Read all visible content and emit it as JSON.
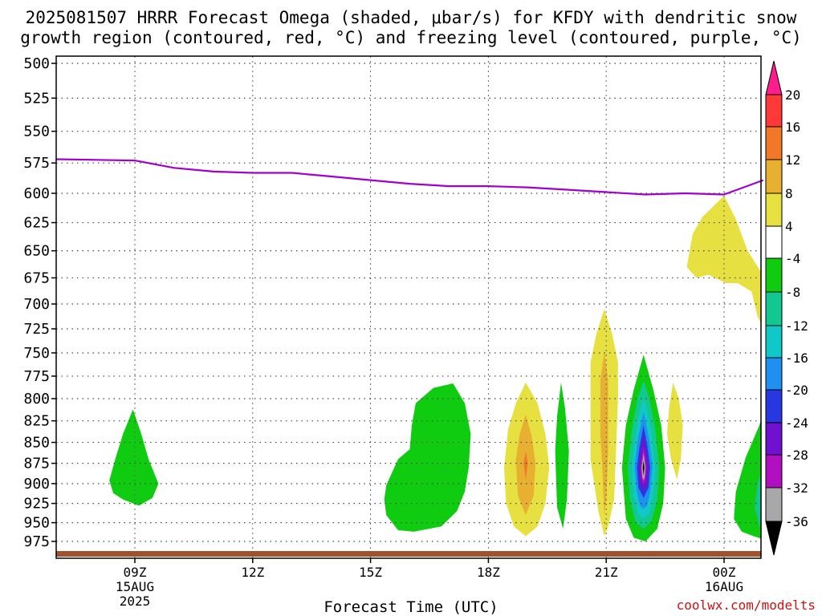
{
  "header": {
    "title_line1": "2025081507 HRRR Forecast Omega (shaded, μbar/s) for KFDY with dendritic snow",
    "title_line2": "growth region (contoured, red, °C) and freezing level (contoured, purple, °C)"
  },
  "footer": {
    "x_axis_title": "Forecast Time (UTC)",
    "credit": "coolwx.com/modelts"
  },
  "colors": {
    "freezing_level": "#a000d0",
    "ground": "#a0522d",
    "grid": "#444444"
  },
  "chart_data": {
    "type": "heatmap",
    "x_unit": "hours after 2025-08-15 07Z",
    "xlim": [
      7,
      25
    ],
    "ylim_hPa": [
      975,
      500
    ],
    "y_ticks": [
      "500",
      "525",
      "550",
      "575",
      "600",
      "625",
      "650",
      "675",
      "700",
      "725",
      "750",
      "775",
      "800",
      "825",
      "850",
      "875",
      "900",
      "925",
      "950",
      "975"
    ],
    "x_ticks": [
      {
        "x": 9,
        "label": "09Z",
        "sub1": "15AUG",
        "sub2": "2025"
      },
      {
        "x": 12,
        "label": "12Z",
        "sub1": "",
        "sub2": ""
      },
      {
        "x": 15,
        "label": "15Z",
        "sub1": "",
        "sub2": ""
      },
      {
        "x": 18,
        "label": "18Z",
        "sub1": "",
        "sub2": ""
      },
      {
        "x": 21,
        "label": "21Z",
        "sub1": "",
        "sub2": ""
      },
      {
        "x": 24,
        "label": "00Z",
        "sub1": "16AUG",
        "sub2": ""
      }
    ],
    "grid": true,
    "colorbar": {
      "unit": "μbar/s",
      "labels": [
        "20",
        "16",
        "12",
        "8",
        "4",
        "-4",
        "-8",
        "-12",
        "-16",
        "-20",
        "-24",
        "-28",
        "-32",
        "-36"
      ],
      "bins": [
        {
          "range": "> 20",
          "color": "#ff1c8c"
        },
        {
          "range": "16 to 20",
          "color": "#ff3838"
        },
        {
          "range": "12 to 16",
          "color": "#f07828"
        },
        {
          "range": "8 to 12",
          "color": "#e8b030"
        },
        {
          "range": "4 to 8",
          "color": "#e6e040"
        },
        {
          "range": "-4 to 4",
          "color": "#ffffff"
        },
        {
          "range": "-8 to -4",
          "color": "#10cc10"
        },
        {
          "range": "-12 to -8",
          "color": "#10c890"
        },
        {
          "range": "-16 to -12",
          "color": "#10c8c8"
        },
        {
          "range": "-20 to -16",
          "color": "#2090f0"
        },
        {
          "range": "-24 to -20",
          "color": "#2838e0"
        },
        {
          "range": "-28 to -24",
          "color": "#7010d0"
        },
        {
          "range": "-32 to -28",
          "color": "#b010c0"
        },
        {
          "range": "-36 to -32",
          "color": "#a8a8a8"
        },
        {
          "range": "< -36",
          "color": "#000000"
        }
      ]
    },
    "freezing_level_hPa": [
      {
        "x": 7.0,
        "p": 572
      },
      {
        "x": 9.0,
        "p": 573
      },
      {
        "x": 10.0,
        "p": 579
      },
      {
        "x": 11.0,
        "p": 582
      },
      {
        "x": 12.0,
        "p": 583
      },
      {
        "x": 13.0,
        "p": 583
      },
      {
        "x": 14.0,
        "p": 586
      },
      {
        "x": 15.0,
        "p": 589
      },
      {
        "x": 16.0,
        "p": 592
      },
      {
        "x": 17.0,
        "p": 594
      },
      {
        "x": 18.0,
        "p": 594
      },
      {
        "x": 19.0,
        "p": 595
      },
      {
        "x": 20.0,
        "p": 597
      },
      {
        "x": 21.0,
        "p": 599
      },
      {
        "x": 22.0,
        "p": 601
      },
      {
        "x": 23.0,
        "p": 600
      },
      {
        "x": 24.0,
        "p": 601
      },
      {
        "x": 25.0,
        "p": 589
      }
    ],
    "omega_regions": [
      {
        "bin": "-8 to -4",
        "points": [
          [
            8.35,
            896
          ],
          [
            8.5,
            870
          ],
          [
            8.7,
            840
          ],
          [
            8.95,
            812
          ],
          [
            9.15,
            838
          ],
          [
            9.35,
            870
          ],
          [
            9.6,
            900
          ],
          [
            9.45,
            918
          ],
          [
            9.1,
            928
          ],
          [
            8.7,
            920
          ],
          [
            8.45,
            912
          ]
        ]
      },
      {
        "bin": "-8 to -4",
        "points": [
          [
            15.4,
            902
          ],
          [
            15.7,
            870
          ],
          [
            16.0,
            858
          ],
          [
            16.05,
            830
          ],
          [
            16.15,
            805
          ],
          [
            16.6,
            788
          ],
          [
            17.1,
            783
          ],
          [
            17.4,
            805
          ],
          [
            17.55,
            840
          ],
          [
            17.5,
            880
          ],
          [
            17.4,
            910
          ],
          [
            17.2,
            935
          ],
          [
            16.8,
            955
          ],
          [
            16.1,
            962
          ],
          [
            15.7,
            960
          ],
          [
            15.4,
            940
          ],
          [
            15.35,
            920
          ]
        ]
      },
      {
        "bin": "4 to 8",
        "points": [
          [
            18.4,
            880
          ],
          [
            18.5,
            835
          ],
          [
            18.7,
            805
          ],
          [
            18.95,
            782
          ],
          [
            19.25,
            805
          ],
          [
            19.45,
            840
          ],
          [
            19.55,
            880
          ],
          [
            19.45,
            925
          ],
          [
            19.25,
            955
          ],
          [
            18.95,
            968
          ],
          [
            18.65,
            955
          ],
          [
            18.45,
            925
          ]
        ]
      },
      {
        "bin": "8 to 12",
        "points": [
          [
            18.7,
            870
          ],
          [
            18.8,
            840
          ],
          [
            18.95,
            818
          ],
          [
            19.1,
            842
          ],
          [
            19.2,
            875
          ],
          [
            19.15,
            915
          ],
          [
            18.95,
            940
          ],
          [
            18.75,
            915
          ]
        ]
      },
      {
        "bin": "12 to 16",
        "points": [
          [
            18.9,
            875
          ],
          [
            18.95,
            860
          ],
          [
            19.0,
            875
          ],
          [
            18.95,
            895
          ]
        ]
      },
      {
        "bin": "-8 to -4",
        "points": [
          [
            19.7,
            860
          ],
          [
            19.75,
            820
          ],
          [
            19.85,
            782
          ],
          [
            19.95,
            810
          ],
          [
            20.05,
            860
          ],
          [
            20.0,
            920
          ],
          [
            19.9,
            958
          ],
          [
            19.75,
            930
          ]
        ]
      },
      {
        "bin": "4 to 8",
        "points": [
          [
            20.6,
            760
          ],
          [
            20.75,
            730
          ],
          [
            20.95,
            705
          ],
          [
            21.15,
            730
          ],
          [
            21.3,
            760
          ],
          [
            21.3,
            800
          ],
          [
            21.25,
            860
          ],
          [
            21.2,
            920
          ],
          [
            21.05,
            955
          ],
          [
            20.95,
            968
          ],
          [
            20.8,
            935
          ],
          [
            20.6,
            870
          ],
          [
            20.6,
            810
          ]
        ]
      },
      {
        "bin": "8 to 12",
        "points": [
          [
            20.85,
            780
          ],
          [
            20.95,
            748
          ],
          [
            21.05,
            780
          ],
          [
            21.05,
            860
          ],
          [
            21.0,
            920
          ],
          [
            20.95,
            940
          ],
          [
            20.9,
            880
          ],
          [
            20.85,
            840
          ]
        ]
      },
      {
        "bin": "-8 to -4",
        "points": [
          [
            21.4,
            880
          ],
          [
            21.5,
            830
          ],
          [
            21.7,
            790
          ],
          [
            21.95,
            752
          ],
          [
            22.2,
            790
          ],
          [
            22.4,
            830
          ],
          [
            22.5,
            880
          ],
          [
            22.45,
            925
          ],
          [
            22.3,
            958
          ],
          [
            22.0,
            975
          ],
          [
            21.7,
            970
          ],
          [
            21.5,
            945
          ]
        ]
      },
      {
        "bin": "-12 to -8",
        "points": [
          [
            21.55,
            880
          ],
          [
            21.65,
            835
          ],
          [
            21.8,
            800
          ],
          [
            21.95,
            780
          ],
          [
            22.1,
            800
          ],
          [
            22.25,
            835
          ],
          [
            22.35,
            880
          ],
          [
            22.3,
            920
          ],
          [
            22.15,
            948
          ],
          [
            21.95,
            958
          ],
          [
            21.75,
            950
          ],
          [
            21.6,
            920
          ]
        ]
      },
      {
        "bin": "-16 to -12",
        "points": [
          [
            21.65,
            880
          ],
          [
            21.75,
            840
          ],
          [
            21.85,
            815
          ],
          [
            21.95,
            800
          ],
          [
            22.05,
            815
          ],
          [
            22.15,
            840
          ],
          [
            22.25,
            880
          ],
          [
            22.2,
            915
          ],
          [
            22.1,
            938
          ],
          [
            21.95,
            945
          ],
          [
            21.8,
            938
          ],
          [
            21.7,
            915
          ]
        ]
      },
      {
        "bin": "-20 to -16",
        "points": [
          [
            21.72,
            880
          ],
          [
            21.8,
            848
          ],
          [
            21.9,
            825
          ],
          [
            21.95,
            815
          ],
          [
            22.0,
            825
          ],
          [
            22.1,
            848
          ],
          [
            22.18,
            880
          ],
          [
            22.12,
            910
          ],
          [
            22.04,
            928
          ],
          [
            21.95,
            932
          ],
          [
            21.86,
            928
          ],
          [
            21.78,
            910
          ]
        ]
      },
      {
        "bin": "-24 to -20",
        "points": [
          [
            21.78,
            880
          ],
          [
            21.85,
            855
          ],
          [
            21.95,
            830
          ],
          [
            22.05,
            855
          ],
          [
            22.12,
            880
          ],
          [
            22.08,
            905
          ],
          [
            21.95,
            918
          ],
          [
            21.82,
            905
          ]
        ]
      },
      {
        "bin": "-28 to -24",
        "points": [
          [
            21.82,
            880
          ],
          [
            21.88,
            860
          ],
          [
            21.95,
            840
          ],
          [
            22.02,
            860
          ],
          [
            22.08,
            880
          ],
          [
            22.04,
            900
          ],
          [
            21.95,
            910
          ],
          [
            21.86,
            900
          ]
        ]
      },
      {
        "bin": "-32 to -28",
        "points": [
          [
            21.87,
            880
          ],
          [
            21.91,
            866
          ],
          [
            21.95,
            853
          ],
          [
            21.99,
            866
          ],
          [
            22.03,
            880
          ],
          [
            22.0,
            895
          ],
          [
            21.95,
            902
          ],
          [
            21.9,
            895
          ]
        ]
      },
      {
        "bin": "-36 to -32",
        "points": [
          [
            21.9,
            880
          ],
          [
            21.93,
            870
          ],
          [
            21.95,
            862
          ],
          [
            21.97,
            870
          ],
          [
            22.0,
            880
          ],
          [
            21.98,
            892
          ],
          [
            21.95,
            896
          ],
          [
            21.92,
            892
          ]
        ]
      },
      {
        "bin": "< -36",
        "points": [
          [
            21.93,
            880
          ],
          [
            21.95,
            872
          ],
          [
            21.97,
            880
          ],
          [
            21.95,
            890
          ]
        ]
      },
      {
        "bin": "4 to 8",
        "points": [
          [
            22.55,
            840
          ],
          [
            22.6,
            810
          ],
          [
            22.7,
            782
          ],
          [
            22.85,
            800
          ],
          [
            22.95,
            830
          ],
          [
            22.9,
            870
          ],
          [
            22.8,
            895
          ],
          [
            22.65,
            870
          ]
        ]
      },
      {
        "bin": "4 to 8",
        "points": [
          [
            23.05,
            665
          ],
          [
            23.2,
            635
          ],
          [
            23.45,
            620
          ],
          [
            24.0,
            602
          ],
          [
            24.3,
            622
          ],
          [
            24.6,
            650
          ],
          [
            24.95,
            670
          ],
          [
            25.0,
            725
          ],
          [
            24.85,
            712
          ],
          [
            24.7,
            688
          ],
          [
            24.35,
            680
          ],
          [
            24.05,
            680
          ],
          [
            23.6,
            672
          ],
          [
            23.3,
            675
          ]
        ]
      },
      {
        "bin": "-8 to -4",
        "points": [
          [
            25.0,
            815
          ],
          [
            24.9,
            830
          ],
          [
            24.55,
            868
          ],
          [
            24.3,
            910
          ],
          [
            24.25,
            945
          ],
          [
            24.45,
            962
          ],
          [
            24.75,
            968
          ],
          [
            25.0,
            972
          ]
        ]
      },
      {
        "bin": "-12 to -8",
        "points": [
          [
            25.0,
            878
          ],
          [
            24.85,
            900
          ],
          [
            24.78,
            930
          ],
          [
            24.9,
            955
          ],
          [
            25.0,
            960
          ]
        ]
      }
    ]
  }
}
